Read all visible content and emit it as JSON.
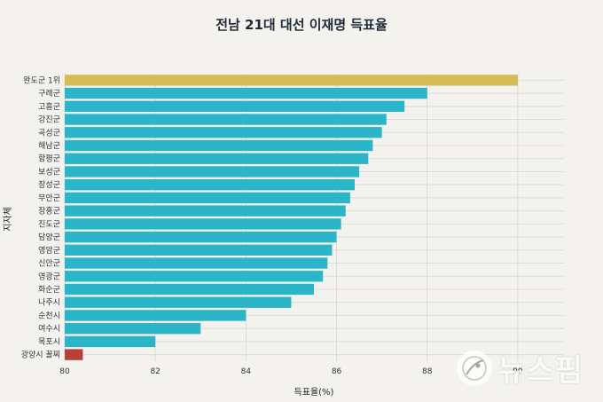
{
  "chart_data": {
    "type": "bar",
    "orientation": "horizontal",
    "title": "전남 21대 대선 이재명 득표율",
    "xlabel": "득표율(%)",
    "ylabel": "지자체",
    "xlim": [
      80,
      91
    ],
    "xticks": [
      "80",
      "82",
      "84",
      "86",
      "88",
      "90"
    ],
    "grid": true,
    "categories": [
      "완도군 1위",
      "구례군",
      "고흥군",
      "강진군",
      "곡성군",
      "해남군",
      "함평군",
      "보성군",
      "장성군",
      "무안군",
      "장흥군",
      "진도군",
      "담양군",
      "영암군",
      "신안군",
      "영광군",
      "화순군",
      "나주시",
      "순천시",
      "여수시",
      "목포시",
      "광양시 꼴찌"
    ],
    "values": [
      90.0,
      88.0,
      87.5,
      87.1,
      87.0,
      86.8,
      86.7,
      86.5,
      86.4,
      86.3,
      86.2,
      86.1,
      86.0,
      85.9,
      85.8,
      85.7,
      85.5,
      85.0,
      84.0,
      83.0,
      82.0,
      80.4
    ],
    "colors": {
      "top": "#d4bd55",
      "bottom": "#b8403a",
      "default": "#2ab6c8"
    }
  },
  "watermark": {
    "text": "뉴스핌",
    "icon": "newspim-logo-icon"
  }
}
